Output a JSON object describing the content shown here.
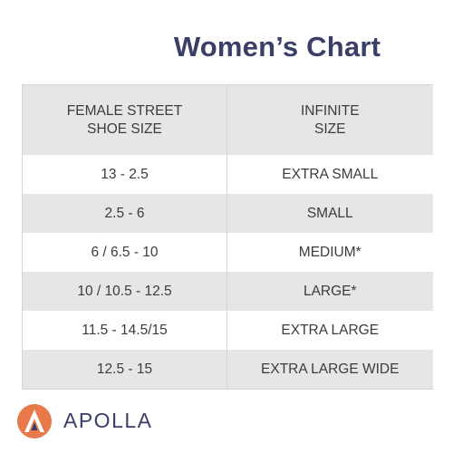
{
  "title": "Women’s Chart",
  "table": {
    "header": {
      "col1_line1": "FEMALE STREET",
      "col1_line2": "SHOE SIZE",
      "col2_line1": "INFINITE",
      "col2_line2": "SIZE"
    },
    "rows": [
      {
        "shoe_size": "13 - 2.5",
        "infinite_size": "EXTRA SMALL"
      },
      {
        "shoe_size": "2.5 - 6",
        "infinite_size": "SMALL"
      },
      {
        "shoe_size": "6 / 6.5 -  10",
        "infinite_size": "MEDIUM*"
      },
      {
        "shoe_size": "10 / 10.5 - 12.5",
        "infinite_size": "LARGE*"
      },
      {
        "shoe_size": "11.5 - 14.5/15",
        "infinite_size": "EXTRA LARGE"
      },
      {
        "shoe_size": "12.5 - 15",
        "infinite_size": "EXTRA LARGE WIDE"
      }
    ]
  },
  "brand": {
    "name": "APOLLA",
    "logo_icon": "apolla-logo-icon",
    "logo_color": "#e8794a",
    "text_color": "#3a3f68"
  },
  "colors": {
    "title": "#3a3f68",
    "shaded_row": "#e7e6e5",
    "text": "#3c3c3c"
  }
}
